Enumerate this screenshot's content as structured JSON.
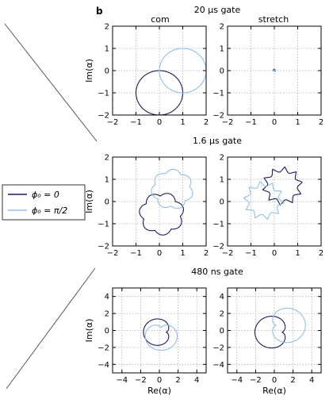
{
  "figure": {
    "panel_label": "b",
    "column_titles": [
      "com",
      "stretch"
    ],
    "legend": {
      "entries": [
        {
          "label": "ϕ₀ = 0",
          "color": "#1a1a5e"
        },
        {
          "label": "ϕ₀ = π/2",
          "color": "#8fbfe8"
        }
      ]
    }
  },
  "chart_data": [
    {
      "type": "line",
      "row_title": "20 μs gate",
      "column": "com",
      "xlim": [
        -2,
        2
      ],
      "ylim": [
        -2,
        2
      ],
      "xticks": [
        -2,
        -1,
        0,
        1,
        2
      ],
      "yticks": [
        -2,
        -1,
        0,
        1,
        2
      ],
      "ylabel": "Im(α)",
      "xlabel": "",
      "grid": true,
      "series": [
        {
          "name": "ϕ₀ = 0",
          "shape": "circle",
          "center": [
            0,
            -1
          ],
          "radius": 1,
          "color": "#1a1a5e"
        },
        {
          "name": "ϕ₀ = π/2",
          "shape": "circle",
          "center": [
            1,
            0
          ],
          "radius": 1,
          "color": "#8fbfe8"
        }
      ]
    },
    {
      "type": "line",
      "row_title": "20 μs gate",
      "column": "stretch",
      "xlim": [
        -2,
        2
      ],
      "ylim": [
        -2,
        2
      ],
      "xticks": [
        -2,
        -1,
        0,
        1,
        2
      ],
      "yticks": [
        -2,
        -1,
        0,
        1,
        2
      ],
      "ylabel": "",
      "xlabel": "",
      "grid": true,
      "series": [
        {
          "name": "ϕ₀ = 0",
          "shape": "circle",
          "center": [
            0,
            0.02
          ],
          "radius": 0.04,
          "color": "#1a1a5e"
        },
        {
          "name": "ϕ₀ = π/2",
          "shape": "circle",
          "center": [
            0.02,
            0
          ],
          "radius": 0.04,
          "color": "#8fbfe8"
        }
      ]
    },
    {
      "type": "line",
      "row_title": "1.6 μs gate",
      "column": "com",
      "xlim": [
        -2,
        2
      ],
      "ylim": [
        -2,
        2
      ],
      "xticks": [
        -2,
        -1,
        0,
        1,
        2
      ],
      "yticks": [
        -2,
        -1,
        0,
        1,
        2
      ],
      "ylabel": "Im(α)",
      "xlabel": "",
      "grid": true,
      "series": [
        {
          "name": "ϕ₀ = 0",
          "shape": "scallop",
          "center": [
            0.1,
            -0.55
          ],
          "radius": 0.8,
          "lobes": 7,
          "lobe_depth": 0.2,
          "rotation": 0.3,
          "color": "#1a1a5e"
        },
        {
          "name": "ϕ₀ = π/2",
          "shape": "scallop",
          "center": [
            0.55,
            0.55
          ],
          "radius": 0.75,
          "lobes": 7,
          "lobe_depth": 0.2,
          "rotation": 0.6,
          "color": "#8fbfe8"
        }
      ]
    },
    {
      "type": "line",
      "row_title": "1.6 μs gate",
      "column": "stretch",
      "xlim": [
        -2,
        2
      ],
      "ylim": [
        -2,
        2
      ],
      "xticks": [
        -2,
        -1,
        0,
        1,
        2
      ],
      "yticks": [
        -2,
        -1,
        0,
        1,
        2
      ],
      "ylabel": "",
      "xlabel": "",
      "grid": true,
      "series": [
        {
          "name": "ϕ₀ = 0",
          "shape": "star",
          "center": [
            0.35,
            0.7
          ],
          "radius": 0.75,
          "lobes": 10,
          "lobe_depth": 0.3,
          "rotation": 0.2,
          "color": "#1a1a5e"
        },
        {
          "name": "ϕ₀ = π/2",
          "shape": "star",
          "center": [
            -0.45,
            0.05
          ],
          "radius": 0.75,
          "lobes": 10,
          "lobe_depth": 0.3,
          "rotation": 0.5,
          "color": "#8fbfe8"
        }
      ]
    },
    {
      "type": "line",
      "row_title": "480 ns gate",
      "column": "com",
      "xlim": [
        -5,
        5
      ],
      "ylim": [
        -5,
        5
      ],
      "xticks": [
        -4,
        -2,
        0,
        2,
        4
      ],
      "yticks": [
        -4,
        -2,
        0,
        2,
        4
      ],
      "ylabel": "Im(α)",
      "xlabel": "Re(α)",
      "grid": true,
      "series": [
        {
          "name": "ϕ₀ = 0",
          "shape": "cardioid",
          "center": [
            0.7,
            -0.2
          ],
          "radius": 2.0,
          "orientation": 3.14,
          "color": "#1a1a5e"
        },
        {
          "name": "ϕ₀ = π/2",
          "shape": "cardioid",
          "center": [
            0.2,
            0.3
          ],
          "radius": 2.2,
          "orientation": -1.57,
          "color": "#8fbfe8"
        }
      ]
    },
    {
      "type": "line",
      "row_title": "480 ns gate",
      "column": "stretch",
      "xlim": [
        -5,
        5
      ],
      "ylim": [
        -5,
        5
      ],
      "xticks": [
        -4,
        -2,
        0,
        2,
        4
      ],
      "yticks": [
        -4,
        -2,
        0,
        2,
        4
      ],
      "ylabel": "",
      "xlabel": "Re(α)",
      "grid": true,
      "series": [
        {
          "name": "ϕ₀ = 0",
          "shape": "cardioid",
          "center": [
            0.8,
            -0.2
          ],
          "radius": 2.4,
          "orientation": 3.14,
          "color": "#1a1a5e"
        },
        {
          "name": "ϕ₀ = π/2",
          "shape": "cardioid",
          "center": [
            0.2,
            0.6
          ],
          "radius": 2.6,
          "orientation": 0.0,
          "color": "#8fbfe8"
        }
      ]
    }
  ]
}
